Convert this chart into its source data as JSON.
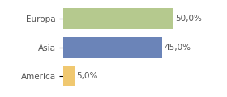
{
  "categories": [
    "Europa",
    "Asia",
    "America"
  ],
  "values": [
    50.0,
    45.0,
    5.0
  ],
  "bar_colors": [
    "#b5c98e",
    "#6b84b8",
    "#f0c870"
  ],
  "labels": [
    "50,0%",
    "45,0%",
    "5,0%"
  ],
  "background_color": "#ffffff",
  "xlim": [
    0,
    62
  ],
  "bar_height": 0.72,
  "label_fontsize": 7.5,
  "tick_fontsize": 7.5,
  "figsize": [
    2.8,
    1.2
  ],
  "dpi": 100
}
